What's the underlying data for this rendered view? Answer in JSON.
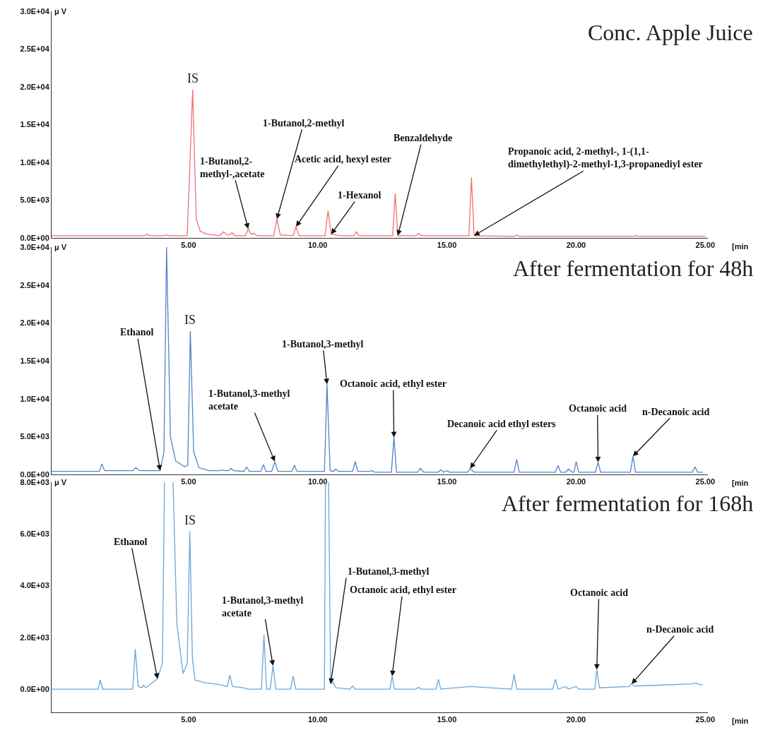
{
  "chart_data": [
    {
      "type": "line",
      "title": "Conc. Apple Juice",
      "ylabel": "μ V",
      "xlabel": "[min",
      "xlim": [
        -0.3,
        25.1
      ],
      "xticks": [
        {
          "value": 5,
          "label": "5.00"
        },
        {
          "value": 10,
          "label": "10.00"
        },
        {
          "value": 15,
          "label": "15.00"
        },
        {
          "value": 20,
          "label": "20.00"
        },
        {
          "value": 25,
          "label": "25.00"
        }
      ],
      "ylim": [
        0,
        30000
      ],
      "yticks": [
        {
          "value": 0,
          "label": "0.0E+00"
        },
        {
          "value": 5000,
          "label": "5.0E+03"
        },
        {
          "value": 10000,
          "label": "1.0E+04"
        },
        {
          "value": 15000,
          "label": "1.5E+04"
        },
        {
          "value": 20000,
          "label": "2.0E+04"
        },
        {
          "value": 25000,
          "label": "2.5E+04"
        },
        {
          "value": 30000,
          "label": "3.0E+04"
        }
      ],
      "series": [
        {
          "color": "#ef6f73",
          "x": [
            -0.3,
            3.3,
            3.4,
            3.5,
            4.05,
            4.15,
            4.25,
            4.95,
            5.16,
            5.3,
            5.45,
            5.7,
            6.2,
            6.36,
            6.5,
            6.6,
            6.68,
            6.8,
            7.2,
            7.31,
            7.42,
            7.53,
            7.65,
            8.3,
            8.42,
            8.55,
            9.05,
            9.16,
            9.28,
            10.28,
            10.4,
            10.52,
            10.7,
            10.85,
            11.4,
            11.5,
            11.6,
            12.9,
            13.0,
            13.1,
            13.8,
            13.9,
            14.0,
            15.85,
            15.95,
            16.05,
            17.6,
            17.7,
            17.8,
            22.2,
            22.3,
            22.4,
            25.0
          ],
          "values": [
            300,
            300,
            500,
            300,
            300,
            400,
            300,
            300,
            19600,
            2500,
            900,
            500,
            300,
            800,
            400,
            400,
            700,
            300,
            300,
            1200,
            500,
            600,
            300,
            300,
            2500,
            400,
            300,
            1500,
            300,
            300,
            3600,
            500,
            400,
            300,
            300,
            800,
            300,
            300,
            5900,
            300,
            300,
            600,
            300,
            300,
            8000,
            300,
            200,
            400,
            200,
            200,
            300,
            200,
            200
          ]
        }
      ],
      "annotations": [
        {
          "text": "IS",
          "x": 5.16,
          "y": 19600
        },
        {
          "text": "1-Butanol,2-\nmethyl-,acetate",
          "x": 7.31,
          "y": 1200
        },
        {
          "text": "1-Butanol,2-methyl",
          "x": 8.42,
          "y": 2500
        },
        {
          "text": "Acetic acid, hexyl ester",
          "x": 9.16,
          "y": 1500
        },
        {
          "text": "1-Hexanol",
          "x": 10.52,
          "y": 500
        },
        {
          "text": "Benzaldehyde",
          "x": 13.1,
          "y": 300
        },
        {
          "text": "Propanoic acid, 2-methyl-, 1-(1,1-\ndimethylethyl)-2-methyl-1,3-propanediyl ester",
          "x": 16.05,
          "y": 300
        }
      ]
    },
    {
      "type": "line",
      "title": "After fermentation for 48h",
      "ylabel": "μ V",
      "xlabel": "[min",
      "xlim": [
        -0.3,
        25.1
      ],
      "xticks": [
        {
          "value": 5,
          "label": "5.00"
        },
        {
          "value": 10,
          "label": "10.00"
        },
        {
          "value": 15,
          "label": "15.00"
        },
        {
          "value": 20,
          "label": "20.00"
        },
        {
          "value": 25,
          "label": "25.00"
        }
      ],
      "ylim": [
        0,
        30000
      ],
      "yticks": [
        {
          "value": 0,
          "label": "0.0E+00"
        },
        {
          "value": 5000,
          "label": "5.0E+03"
        },
        {
          "value": 10000,
          "label": "1.0E+04"
        },
        {
          "value": 15000,
          "label": "1.5E+04"
        },
        {
          "value": 20000,
          "label": "2.0E+04"
        },
        {
          "value": 25000,
          "label": "2.5E+04"
        },
        {
          "value": 30000,
          "label": "3.0E+04"
        }
      ],
      "series": [
        {
          "color": "#4f84c9",
          "x": [
            -0.3,
            1.55,
            1.65,
            1.75,
            2.85,
            2.96,
            3.1,
            3.9,
            4.05,
            4.15,
            4.3,
            4.5,
            4.85,
            4.97,
            5.07,
            5.2,
            5.4,
            5.8,
            6.2,
            6.3,
            6.4,
            6.55,
            6.65,
            6.75,
            7.15,
            7.25,
            7.35,
            7.8,
            7.9,
            8.0,
            8.22,
            8.34,
            8.46,
            9.0,
            9.1,
            9.2,
            10.26,
            10.36,
            10.48,
            10.6,
            10.7,
            10.8,
            11.35,
            11.45,
            11.55,
            12.0,
            12.1,
            12.2,
            12.85,
            12.95,
            13.05,
            13.87,
            13.97,
            14.1,
            14.66,
            14.76,
            14.87,
            15.0,
            15.1,
            15.8,
            15.9,
            16.05,
            17.6,
            17.7,
            17.8,
            19.2,
            19.3,
            19.4,
            19.6,
            19.7,
            19.85,
            19.92,
            20.0,
            20.1,
            20.75,
            20.85,
            20.95,
            22.1,
            22.2,
            22.3,
            24.5,
            24.6,
            24.7,
            24.9
          ],
          "values": [
            400,
            400,
            1400,
            500,
            500,
            900,
            500,
            500,
            3000,
            30000,
            5000,
            1800,
            1000,
            1200,
            18900,
            3000,
            900,
            500,
            500,
            600,
            500,
            500,
            800,
            500,
            400,
            1000,
            400,
            400,
            1300,
            400,
            400,
            1700,
            400,
            400,
            1200,
            400,
            400,
            11900,
            500,
            400,
            700,
            400,
            400,
            1700,
            400,
            400,
            500,
            300,
            300,
            4900,
            300,
            300,
            800,
            300,
            300,
            600,
            300,
            500,
            300,
            300,
            800,
            300,
            300,
            2000,
            300,
            300,
            1200,
            300,
            300,
            700,
            300,
            300,
            1700,
            300,
            300,
            1600,
            300,
            300,
            2400,
            300,
            300,
            1000,
            300,
            300
          ]
        }
      ],
      "annotations": [
        {
          "text": "Ethanol",
          "x": 3.9,
          "y": 500
        },
        {
          "text": "IS",
          "x": 5.07,
          "y": 18900
        },
        {
          "text": "1-Butanol,3-methyl\nacetate",
          "x": 8.34,
          "y": 1700
        },
        {
          "text": "1-Butanol,3-methyl",
          "x": 10.36,
          "y": 11900
        },
        {
          "text": "Octanoic acid, ethyl ester",
          "x": 12.95,
          "y": 4900
        },
        {
          "text": "Decanoic acid ethyl esters",
          "x": 15.9,
          "y": 800
        },
        {
          "text": "Octanoic acid",
          "x": 20.85,
          "y": 1600
        },
        {
          "text": "n-Decanoic acid",
          "x": 22.2,
          "y": 2400
        }
      ]
    },
    {
      "type": "line",
      "title": "After fermentation for 168h",
      "ylabel": "μ V",
      "xlabel": "[min",
      "xlim": [
        -0.3,
        25.1
      ],
      "xticks": [
        {
          "value": 5,
          "label": "5.00"
        },
        {
          "value": 10,
          "label": "10.00"
        },
        {
          "value": 15,
          "label": "15.00"
        },
        {
          "value": 20,
          "label": "20.00"
        },
        {
          "value": 25,
          "label": "25.00"
        }
      ],
      "ylim": [
        -900,
        8000
      ],
      "yticks": [
        {
          "value": 0,
          "label": "0.0E+00"
        },
        {
          "value": 2000,
          "label": "2.0E+03"
        },
        {
          "value": 4000,
          "label": "4.0E+03"
        },
        {
          "value": 6000,
          "label": "6.0E+03"
        },
        {
          "value": 8000,
          "label": "8.0E+03"
        }
      ],
      "series": [
        {
          "color": "#6aa6d8",
          "x": [
            -0.3,
            1.5,
            1.58,
            1.68,
            2.84,
            2.94,
            3.05,
            3.2,
            3.26,
            3.35,
            3.8,
            3.99,
            4.07,
            4.15,
            4.4,
            4.55,
            4.79,
            4.95,
            5.05,
            5.15,
            5.25,
            5.6,
            6.0,
            6.3,
            6.5,
            6.6,
            6.7,
            7.13,
            7.3,
            7.82,
            7.92,
            8.02,
            8.16,
            8.27,
            8.38,
            8.95,
            9.05,
            9.15,
            10.26,
            10.3,
            10.36,
            10.42,
            10.5,
            10.6,
            10.7,
            11.25,
            11.35,
            11.45,
            12.8,
            12.88,
            12.97,
            13.8,
            13.9,
            14.0,
            14.58,
            14.67,
            14.76,
            15.9,
            17.5,
            17.6,
            17.7,
            19.1,
            19.2,
            19.3,
            19.6,
            19.7,
            20.0,
            20.1,
            20.72,
            20.8,
            20.9,
            22.05,
            22.15,
            22.25,
            22.7,
            24.5,
            24.6,
            24.7,
            24.9
          ],
          "values": [
            0,
            0,
            350,
            0,
            0,
            1550,
            100,
            50,
            150,
            50,
            400,
            1000,
            8000,
            null,
            8000,
            2500,
            600,
            1000,
            6100,
            1200,
            350,
            250,
            200,
            150,
            100,
            550,
            100,
            50,
            0,
            0,
            2100,
            0,
            0,
            900,
            0,
            0,
            500,
            0,
            0,
            8000,
            null,
            8000,
            200,
            260,
            50,
            0,
            120,
            0,
            0,
            500,
            0,
            0,
            70,
            0,
            0,
            380,
            0,
            100,
            0,
            570,
            0,
            0,
            380,
            0,
            100,
            0,
            100,
            0,
            0,
            750,
            50,
            100,
            210,
            120,
            130,
            200,
            230,
            200,
            160
          ]
        }
      ],
      "annotations": [
        {
          "text": "Ethanol",
          "x": 3.8,
          "y": 400
        },
        {
          "text": "IS",
          "x": 5.05,
          "y": 6100
        },
        {
          "text": "1-Butanol,3-methyl\nacetate",
          "x": 8.27,
          "y": 900
        },
        {
          "text": "1-Butanol,3-methyl",
          "x": 10.5,
          "y": 200
        },
        {
          "text": "Octanoic acid, ethyl ester",
          "x": 12.88,
          "y": 500
        },
        {
          "text": "Octanoic acid",
          "x": 20.8,
          "y": 750
        },
        {
          "text": "n-Decanoic acid",
          "x": 22.15,
          "y": 200
        }
      ]
    }
  ]
}
